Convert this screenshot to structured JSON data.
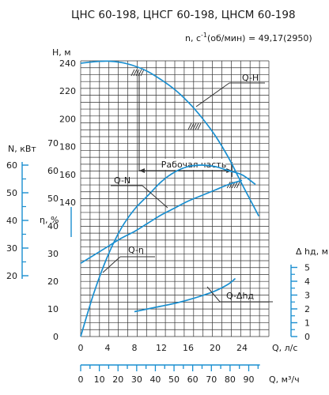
{
  "chart_data": {
    "type": "line",
    "title": "ЦНС 60-198, ЦНСГ 60-198, ЦНСМ 60-198",
    "speed_label": "n, c",
    "speed_exp": "-1",
    "speed_value": "(об/мин) = 49,17(2950)",
    "x_axis_q": {
      "label": "Q, л/с",
      "range": [
        0,
        28
      ],
      "ticks": [
        0,
        4,
        8,
        12,
        16,
        20,
        24
      ],
      "tick_labels": [
        "0",
        "4",
        "8",
        "12",
        "16",
        "20",
        "24"
      ]
    },
    "x_axis_q_m3h": {
      "label": "Q, м³/ч",
      "range": [
        0,
        100
      ],
      "ticks": [
        0,
        10,
        20,
        30,
        40,
        50,
        60,
        70,
        80,
        90
      ],
      "tick_labels": [
        "0",
        "10",
        "20",
        "30",
        "40",
        "50",
        "60",
        "70",
        "80",
        "90"
      ]
    },
    "y_axis_h": {
      "label": "H, м",
      "ticks": [
        140,
        160,
        180,
        200,
        220,
        240
      ],
      "tick_labels": [
        "140",
        "160",
        "180",
        "200",
        "220",
        "240"
      ]
    },
    "y_axis_n": {
      "label": "N, кВт",
      "ticks": [
        20,
        30,
        40,
        50,
        60
      ],
      "tick_labels": [
        "20",
        "30",
        "40",
        "50",
        "60"
      ]
    },
    "y_axis_eta": {
      "label": "η, %",
      "ticks": [
        0,
        10,
        20,
        30,
        40,
        50,
        60,
        70
      ],
      "tick_labels": [
        "0",
        "10",
        "20",
        "30",
        "40",
        "50",
        "60",
        "70"
      ]
    },
    "y_axis_npsh": {
      "label": "Δ hд, м",
      "ticks": [
        0,
        1,
        2,
        3,
        4,
        5
      ],
      "tick_labels": [
        "0",
        "1",
        "2",
        "3",
        "4",
        "5"
      ]
    },
    "working_range": {
      "label": "Рабочая часть",
      "q_from": 8.7,
      "q_to": 22.5
    },
    "series": [
      {
        "name": "Q-H",
        "axis": "H",
        "x": [
          0,
          2,
          4,
          6,
          8,
          10,
          12,
          14,
          16,
          18,
          20,
          22,
          24,
          26.5
        ],
        "y": [
          240,
          241,
          241.5,
          240.5,
          238,
          234,
          228,
          221,
          212,
          201,
          188,
          172,
          153,
          130
        ]
      },
      {
        "name": "Q-N",
        "axis": "N",
        "x": [
          0,
          2,
          4,
          6,
          8,
          10,
          12,
          14,
          16,
          18,
          20,
          22,
          24
        ],
        "y": [
          24.5,
          27.5,
          30.5,
          33.5,
          36,
          39,
          42,
          44.5,
          47,
          49,
          51,
          53,
          54.5
        ]
      },
      {
        "name": "Q-η",
        "axis": "eta",
        "x": [
          0,
          2,
          4,
          6,
          8,
          10,
          12,
          14,
          16,
          18,
          20,
          22,
          24,
          26
        ],
        "y": [
          0,
          16,
          29,
          39,
          46,
          51,
          56,
          59.5,
          61.5,
          62,
          61.5,
          60,
          58.5,
          55
        ]
      },
      {
        "name": "Q-Δhд",
        "axis": "npsh",
        "x": [
          8,
          10,
          12,
          14,
          16,
          18,
          20,
          22,
          23
        ],
        "y": [
          1.8,
          2.0,
          2.2,
          2.4,
          2.65,
          2.95,
          3.3,
          3.8,
          4.2
        ]
      }
    ],
    "curve_labels": [
      "Q-H",
      "Q-N",
      "Q-η",
      "Q-Δhд"
    ],
    "grid": true
  },
  "colors": {
    "curve": "#1a8fd0",
    "axis": "#1a8fd0",
    "grid": "#333333",
    "text": "#1a1a1a"
  }
}
